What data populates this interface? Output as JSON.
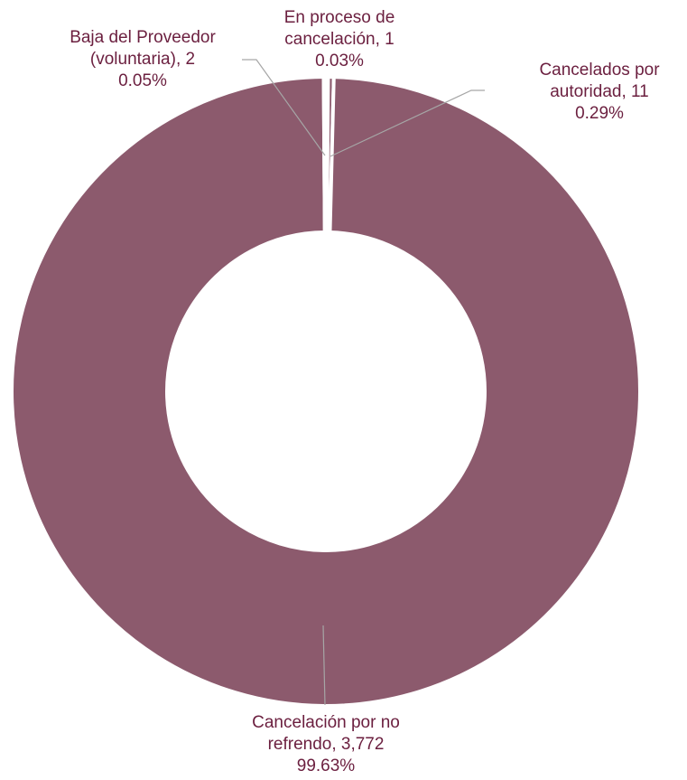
{
  "chart_data": {
    "type": "pie",
    "subtype": "donut",
    "slices": [
      {
        "name": "En proceso de cancelación",
        "value": 1,
        "percent": "0.03%",
        "color": "#8c5a6d",
        "label_lines": [
          "En proceso de",
          "cancelación, 1",
          "0.03%"
        ]
      },
      {
        "name": "Cancelados por autoridad",
        "value": 11,
        "percent": "0.29%",
        "color": "#8c5a6d",
        "label_lines": [
          "Cancelados por",
          "autoridad, 11",
          "0.29%"
        ]
      },
      {
        "name": "Cancelación por no refrendo",
        "value": 3772,
        "percent": "99.63%",
        "color": "#8c5a6d",
        "label_lines": [
          "Cancelación por no",
          "refrendo, 3,772",
          "99.63%"
        ]
      },
      {
        "name": "Baja del Proveedor (voluntaria)",
        "value": 2,
        "percent": "0.05%",
        "color": "#8c5a6d",
        "label_lines": [
          "Baja del Proveedor",
          "(voluntaria), 2",
          "0.05%"
        ]
      }
    ],
    "label_color": "#6b1f3f",
    "separator_color": "#ffffff"
  }
}
